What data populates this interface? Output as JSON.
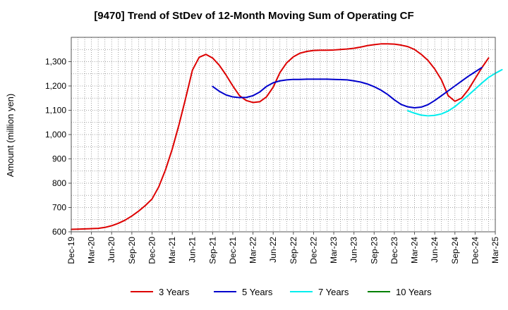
{
  "chart_data": {
    "type": "line",
    "title": "[9470]  Trend of StDev of 12-Month Moving Sum of Operating CF",
    "xlabel": "",
    "ylabel": "Amount (million yen)",
    "ylim": [
      600,
      1400
    ],
    "yticks": [
      600,
      700,
      800,
      900,
      1000,
      1100,
      1200,
      1300
    ],
    "ytick_labels": [
      "600",
      "700",
      "800",
      "900",
      "1,000",
      "1,100",
      "1,200",
      "1,300"
    ],
    "x_tick_labels": [
      "Dec-19",
      "Mar-20",
      "Jun-20",
      "Sep-20",
      "Dec-20",
      "Mar-21",
      "Jun-21",
      "Sep-21",
      "Dec-21",
      "Mar-22",
      "Jun-22",
      "Sep-22",
      "Dec-22",
      "Mar-23",
      "Jun-23",
      "Sep-23",
      "Dec-23",
      "Mar-24",
      "Jun-24",
      "Sep-24",
      "Dec-24",
      "Mar-25"
    ],
    "grid": true,
    "legend_position": "bottom",
    "series": [
      {
        "name": "3 Years",
        "color": "#dd0000",
        "start_month": 0,
        "values": [
          610,
          611,
          612,
          613,
          614,
          618,
          625,
          635,
          648,
          665,
          685,
          708,
          735,
          785,
          855,
          940,
          1040,
          1150,
          1265,
          1318,
          1330,
          1315,
          1285,
          1245,
          1200,
          1160,
          1140,
          1132,
          1135,
          1155,
          1195,
          1255,
          1295,
          1320,
          1335,
          1342,
          1346,
          1347,
          1347,
          1348,
          1350,
          1352,
          1355,
          1360,
          1366,
          1370,
          1373,
          1373,
          1372,
          1368,
          1362,
          1350,
          1330,
          1305,
          1270,
          1225,
          1160,
          1137,
          1150,
          1185,
          1230,
          1275,
          1315
        ]
      },
      {
        "name": "5 Years",
        "color": "#0000cc",
        "start_month": 21,
        "values": [
          1198,
          1178,
          1163,
          1155,
          1152,
          1153,
          1160,
          1175,
          1198,
          1213,
          1221,
          1225,
          1227,
          1227,
          1228,
          1228,
          1228,
          1228,
          1227,
          1226,
          1225,
          1221,
          1216,
          1208,
          1197,
          1183,
          1165,
          1143,
          1124,
          1114,
          1110,
          1113,
          1123,
          1140,
          1160,
          1180,
          1200,
          1220,
          1240,
          1258,
          1276
        ]
      },
      {
        "name": "7 Years",
        "color": "#00eeee",
        "start_month": 50,
        "values": [
          1098,
          1088,
          1080,
          1077,
          1079,
          1085,
          1097,
          1115,
          1138,
          1162,
          1187,
          1212,
          1235,
          1252,
          1267
        ]
      },
      {
        "name": "10 Years",
        "color": "#008000",
        "start_month": 0,
        "values": []
      }
    ]
  }
}
